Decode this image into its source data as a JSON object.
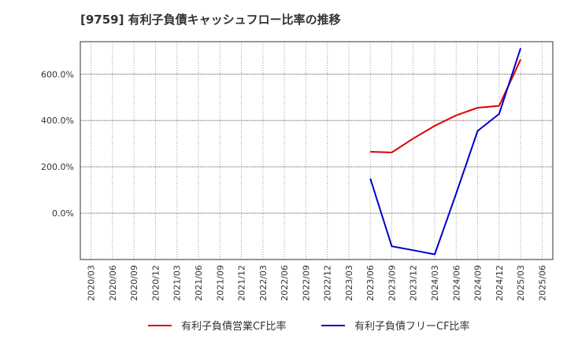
{
  "title": "[9759]  有利子負債キャッシュフロー比率の推移",
  "chart_data": {
    "type": "line",
    "title": "[9759]  有利子負債キャッシュフロー比率の推移",
    "xlabel": "",
    "ylabel": "",
    "x": [
      "2020/03",
      "2020/06",
      "2020/09",
      "2020/12",
      "2021/03",
      "2021/06",
      "2021/09",
      "2021/12",
      "2022/03",
      "2022/06",
      "2022/09",
      "2022/12",
      "2023/03",
      "2023/06",
      "2023/09",
      "2023/12",
      "2024/03",
      "2024/06",
      "2024/09",
      "2024/12",
      "2025/03",
      "2025/06"
    ],
    "y_ticks": [
      0,
      200,
      400,
      600
    ],
    "y_tick_labels": [
      "0.0%",
      "200.0%",
      "400.0%",
      "600.0%"
    ],
    "ylim": [
      -200,
      740
    ],
    "grid": true,
    "series": [
      {
        "name": "有利子負債営業CF比率",
        "color": "#dd0000",
        "values": [
          null,
          null,
          null,
          null,
          null,
          null,
          null,
          null,
          null,
          null,
          null,
          null,
          null,
          265,
          262,
          322,
          377,
          422,
          455,
          463,
          663,
          null
        ]
      },
      {
        "name": "有利子負債フリーCF比率",
        "color": "#0000cc",
        "values": [
          null,
          null,
          null,
          null,
          null,
          null,
          null,
          null,
          null,
          null,
          null,
          null,
          null,
          150,
          -143,
          -160,
          -178,
          85,
          355,
          428,
          712,
          null
        ]
      }
    ],
    "legend_position": "bottom"
  }
}
